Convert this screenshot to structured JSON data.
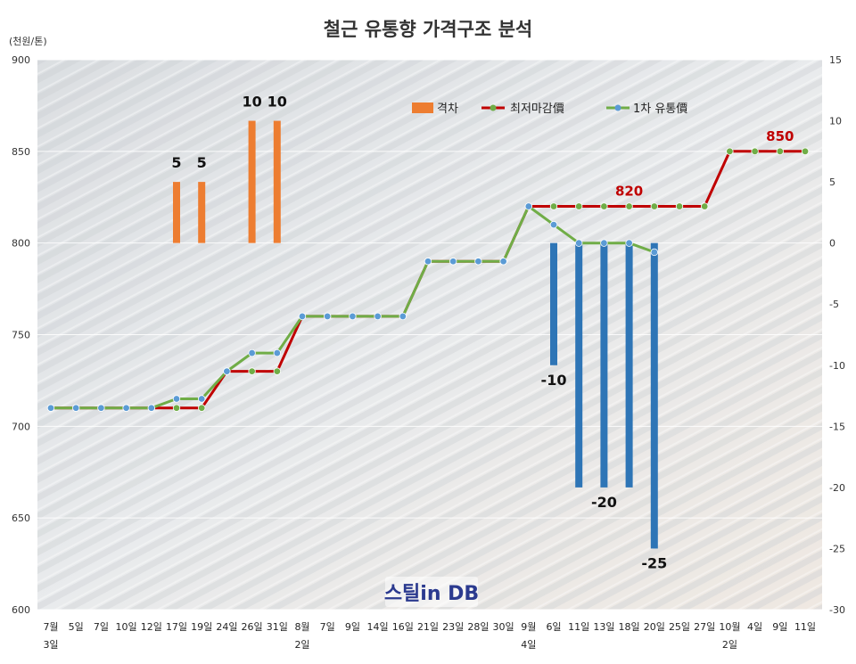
{
  "chart_data": {
    "type": "bar+line",
    "title": "철근 유통향 가격구조 분석",
    "y_unit_label": "(천원/톤)",
    "ylim_left": [
      600,
      900
    ],
    "yticks_left": [
      600,
      650,
      700,
      750,
      800,
      850,
      900
    ],
    "ylim_right": [
      -30,
      15
    ],
    "yticks_right": [
      -30,
      -25,
      -20,
      -15,
      -10,
      -5,
      0,
      5,
      10,
      15
    ],
    "categories": [
      "7월",
      "5일",
      "7일",
      "10일",
      "12일",
      "17일",
      "19일",
      "24일",
      "26일",
      "31일",
      "8월",
      "7일",
      "9일",
      "14일",
      "16일",
      "21일",
      "23일",
      "28일",
      "30일",
      "9월",
      "6일",
      "11일",
      "13일",
      "18일",
      "20일",
      "25일",
      "27일",
      "10월",
      "4일",
      "9일",
      "11일"
    ],
    "sub_labels": [
      {
        "index": 0,
        "text": "3일"
      },
      {
        "index": 10,
        "text": "2일"
      },
      {
        "index": 19,
        "text": "4일"
      },
      {
        "index": 27,
        "text": "2일"
      }
    ],
    "legend": [
      "격차",
      "최저마감價",
      "1차 유통價"
    ],
    "legend_position": "top-right",
    "grid": true,
    "series": [
      {
        "name": "격차",
        "kind": "bar",
        "axis": "right",
        "color": "#ED7D31",
        "negative_color": "#2E75B6",
        "values": [
          null,
          null,
          null,
          null,
          null,
          5,
          5,
          null,
          10,
          10,
          null,
          null,
          null,
          null,
          null,
          null,
          null,
          null,
          null,
          null,
          -10,
          -20,
          -20,
          -20,
          -25,
          null,
          null,
          null,
          null,
          null,
          null
        ]
      },
      {
        "name": "최저마감價",
        "kind": "line",
        "axis": "left",
        "color": "#C00000",
        "marker_color": "#70AD47",
        "values": [
          710,
          710,
          710,
          710,
          710,
          710,
          710,
          730,
          730,
          730,
          760,
          760,
          760,
          760,
          760,
          790,
          790,
          790,
          790,
          820,
          820,
          820,
          820,
          820,
          820,
          820,
          820,
          850,
          850,
          850,
          850
        ]
      },
      {
        "name": "1차 유통價",
        "kind": "line",
        "axis": "left",
        "color": "#70AD47",
        "marker_color": "#5B9BD5",
        "values": [
          710,
          710,
          710,
          710,
          710,
          715,
          715,
          730,
          740,
          740,
          760,
          760,
          760,
          760,
          760,
          790,
          790,
          790,
          790,
          820,
          810,
          800,
          800,
          800,
          795,
          null,
          null,
          null,
          null,
          null,
          null
        ]
      }
    ],
    "bar_labels": [
      {
        "index": 5,
        "text": "5"
      },
      {
        "index": 6,
        "text": "5"
      },
      {
        "index": 8,
        "text": "10"
      },
      {
        "index": 9,
        "text": "10"
      },
      {
        "index": 20,
        "text": "-10"
      },
      {
        "index": 22,
        "text": "-20"
      },
      {
        "index": 24,
        "text": "-25"
      }
    ],
    "line_labels": [
      {
        "index": 23,
        "text": "820"
      },
      {
        "index": 29,
        "text": "850"
      }
    ],
    "watermark": "스틸in DB"
  }
}
